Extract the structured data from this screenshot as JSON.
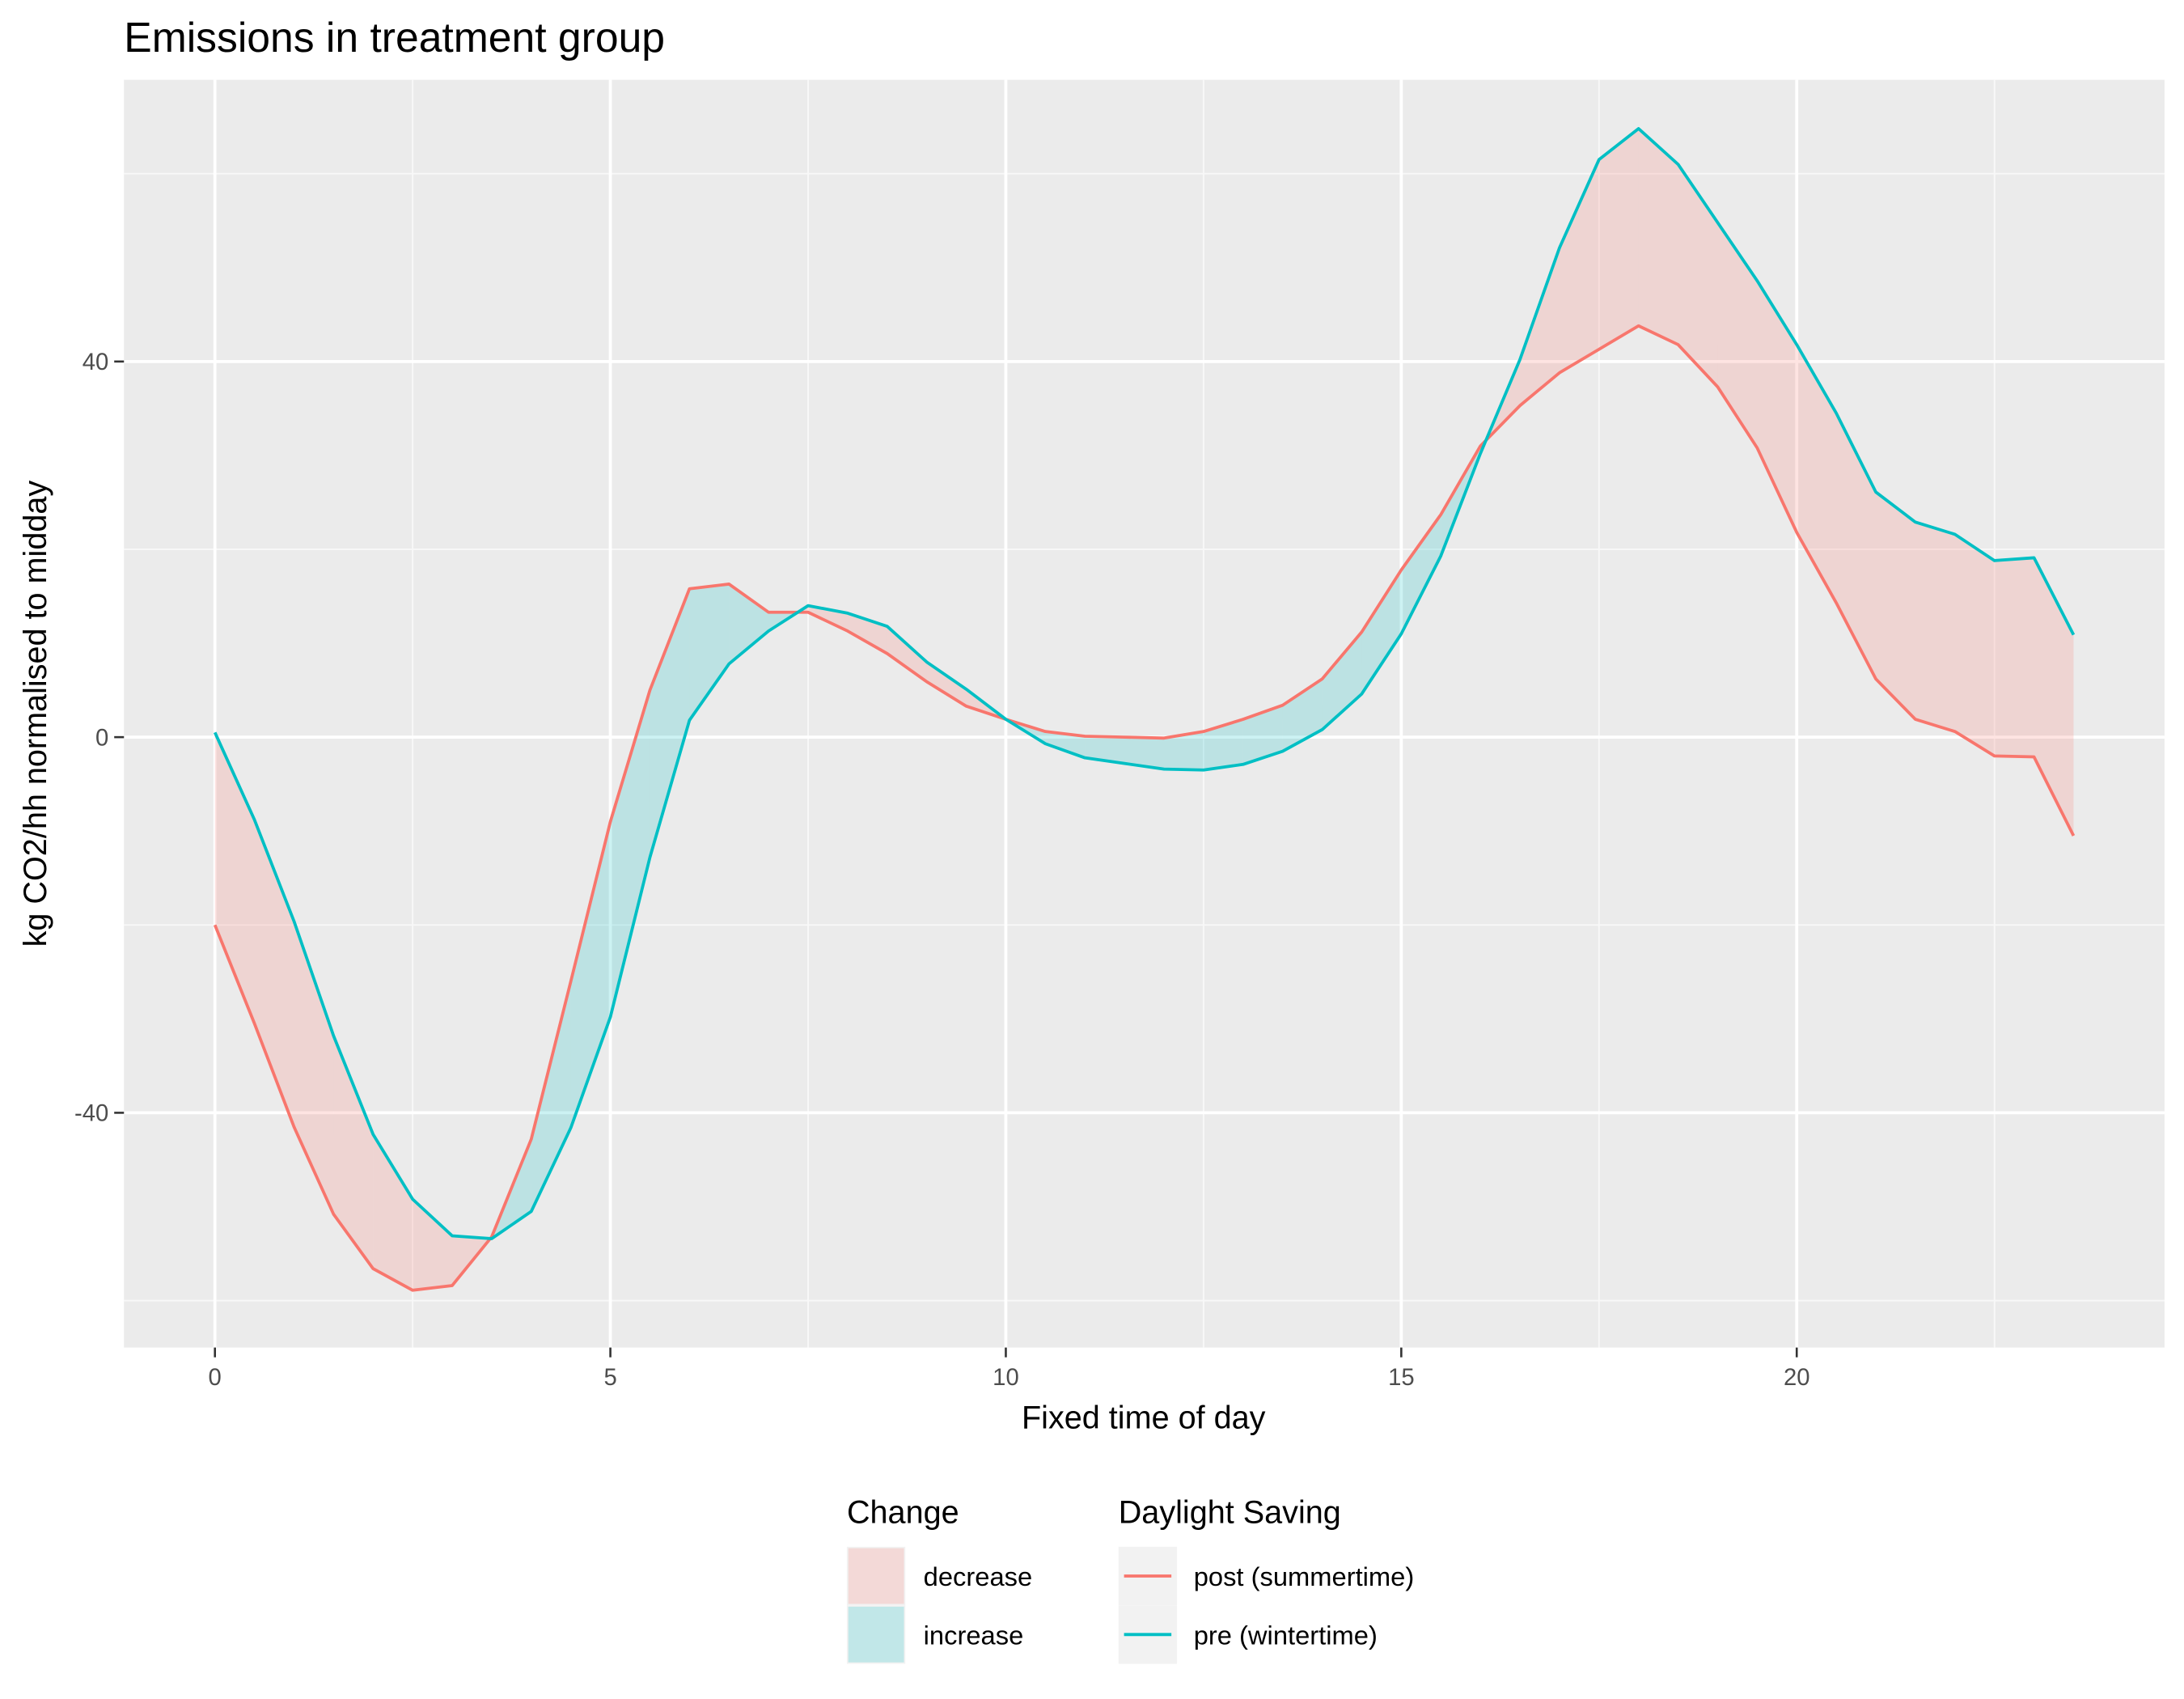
{
  "chart_data": {
    "type": "line",
    "title": "Emissions in treatment group",
    "xlabel": "Fixed time of day",
    "ylabel": "kg CO2/hh normalised to midday",
    "xlim": [
      -1.15,
      24.65
    ],
    "ylim": [
      -65,
      70
    ],
    "x_ticks": [
      0,
      5,
      10,
      15,
      20
    ],
    "y_ticks": [
      -40,
      0,
      40
    ],
    "grid": true,
    "legend_position": "bottom",
    "x": [
      0,
      0.5,
      1,
      1.5,
      2,
      2.5,
      3,
      3.5,
      4,
      4.5,
      5,
      5.5,
      6,
      6.5,
      7,
      7.5,
      8,
      8.5,
      9,
      9.5,
      10,
      10.5,
      11,
      11.5,
      12,
      12.5,
      13,
      13.5,
      14,
      14.5,
      15,
      15.5,
      16,
      16.5,
      17,
      17.5,
      18,
      18.5,
      19,
      19.5,
      20,
      20.5,
      21,
      21.5,
      22,
      22.5,
      23,
      23.5
    ],
    "series": [
      {
        "name": "post (summertime)",
        "color": "#F8766D",
        "values": [
          -20,
          -30.5,
          -41.5,
          -50.8,
          -56.6,
          -58.9,
          -58.4,
          -53.2,
          -42.8,
          -26.0,
          -9.0,
          5.0,
          15.8,
          16.3,
          13.3,
          13.3,
          11.3,
          8.9,
          5.9,
          3.3,
          1.9,
          0.6,
          0.1,
          0.0,
          -0.1,
          0.6,
          1.9,
          3.4,
          6.2,
          11.2,
          17.8,
          23.7,
          31.0,
          35.3,
          38.8,
          41.3,
          43.8,
          41.8,
          37.3,
          30.8,
          21.8,
          14.3,
          6.2,
          1.9,
          0.6,
          -2.0,
          -2.1,
          -10.5
        ]
      },
      {
        "name": "pre (wintertime)",
        "color": "#00BFC4",
        "values": [
          0.5,
          -8.8,
          -19.6,
          -31.8,
          -42.3,
          -49.2,
          -53.1,
          -53.4,
          -50.5,
          -41.6,
          -29.8,
          -12.8,
          1.8,
          7.8,
          11.3,
          14.0,
          13.2,
          11.8,
          8.0,
          5.1,
          1.9,
          -0.7,
          -2.2,
          -2.8,
          -3.4,
          -3.5,
          -2.9,
          -1.5,
          0.8,
          4.6,
          11.0,
          19.3,
          30.2,
          40.2,
          52.1,
          61.5,
          64.8,
          61.0,
          54.8,
          48.6,
          41.8,
          34.5,
          26.1,
          22.9,
          21.6,
          18.8,
          19.1,
          10.9
        ]
      }
    ],
    "ribbon": {
      "name": "Change",
      "categories": [
        {
          "label": "decrease",
          "color": "#F8766D"
        },
        {
          "label": "increase",
          "color": "#00BFC4"
        }
      ]
    },
    "legends": [
      {
        "title": "Change",
        "kind": "fill",
        "items": [
          "decrease",
          "increase"
        ]
      },
      {
        "title": "Daylight Saving",
        "kind": "line",
        "items": [
          "post (summertime)",
          "pre (wintertime)"
        ]
      }
    ]
  }
}
